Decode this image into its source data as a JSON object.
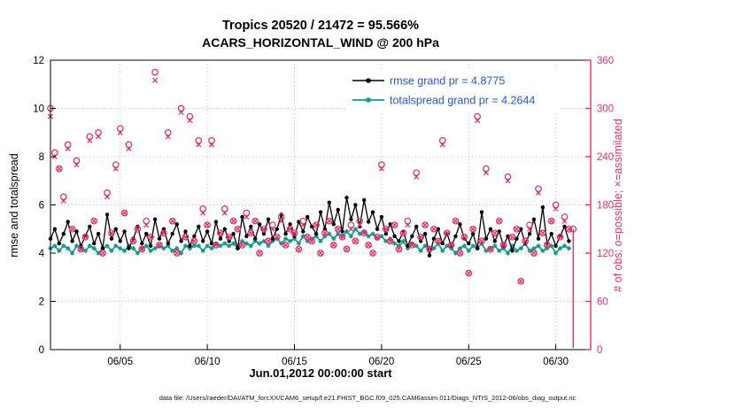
{
  "figure": {
    "footer": "data file: /Users/raeder/DAI/ATM_forcXX/CAM6_setup/f.e21.FHIST_BGC.f09_025.CAM6assim.011/Diags_NTrS_2012-06/obs_diag_output.nc"
  },
  "chart_data": {
    "type": "line+scatter",
    "title": "Tropics 20520 / 21472 = 95.566%",
    "subtitle": "ACARS_HORIZONTAL_WIND @ 200 hPa",
    "xlabel": "Jun.01,2012 00:00:00 start",
    "ylabel_left": "rmse and totalspread",
    "ylabel_right": "# of obs: o=possible; ×=assimilated",
    "left_ylim": [
      0,
      12
    ],
    "right_ylim": [
      0,
      360
    ],
    "x_domain_days": 31,
    "points_per_day": 4,
    "grid": true,
    "legend_position": "top-center-right",
    "x_ticks": {
      "days": [
        4,
        9,
        14,
        19,
        24,
        29
      ],
      "labels": [
        "06/05",
        "06/10",
        "06/15",
        "06/20",
        "06/25",
        "06/30"
      ]
    },
    "left_ticks": [
      0,
      2,
      4,
      6,
      8,
      10,
      12
    ],
    "right_ticks": [
      0,
      60,
      120,
      180,
      240,
      300,
      360
    ],
    "colors": {
      "pink": "#e0306e",
      "teal": "#12998a",
      "black": "#000000",
      "legend_text": "#2457d8",
      "grid": "#bdbdbd"
    },
    "series": {
      "rmse": {
        "name": "rmse grand pr = 4.8775",
        "axis": "left",
        "marker": "dot",
        "line": true,
        "values": [
          4.6,
          5.0,
          4.4,
          4.8,
          5.3,
          4.5,
          4.9,
          4.3,
          4.7,
          5.1,
          4.4,
          4.8,
          4.2,
          5.6,
          4.6,
          5.0,
          4.5,
          4.9,
          4.2,
          4.6,
          5.1,
          4.4,
          4.8,
          4.3,
          5.4,
          4.6,
          5.0,
          4.4,
          4.8,
          5.2,
          4.5,
          4.9,
          4.3,
          4.7,
          5.1,
          4.5,
          4.9,
          4.4,
          5.3,
          4.6,
          5.0,
          4.5,
          4.8,
          4.2,
          5.5,
          4.7,
          5.1,
          4.6,
          5.2,
          4.8,
          5.4,
          4.6,
          5.0,
          5.6,
          4.8,
          5.2,
          4.7,
          5.3,
          4.9,
          5.5,
          5.1,
          4.8,
          5.7,
          5.0,
          6.1,
          5.2,
          5.8,
          4.9,
          6.3,
          5.4,
          6.0,
          5.1,
          6.2,
          5.3,
          5.7,
          5.0,
          5.5,
          4.8,
          5.2,
          4.7,
          4.5,
          4.9,
          4.3,
          4.7,
          5.1,
          4.5,
          4.8,
          3.9,
          4.6,
          5.0,
          4.4,
          4.8,
          4.3,
          4.7,
          5.2,
          4.6,
          4.4,
          4.8,
          4.2,
          5.7,
          4.6,
          5.0,
          4.5,
          4.9,
          4.3,
          4.7,
          4.1,
          4.6,
          5.0,
          4.4,
          4.8,
          5.4,
          4.6,
          5.9,
          4.4,
          4.8,
          4.3,
          4.7,
          5.1,
          4.5
        ]
      },
      "totalspread": {
        "name": "totalspread grand pr = 4.2644",
        "axis": "left",
        "marker": "asterisk",
        "line": true,
        "values": [
          4.2,
          4.3,
          4.1,
          4.3,
          4.2,
          4.0,
          4.3,
          4.2,
          4.1,
          4.3,
          4.2,
          4.0,
          4.2,
          4.3,
          4.1,
          4.3,
          4.2,
          4.1,
          4.3,
          4.2,
          4.0,
          4.2,
          4.3,
          4.1,
          4.2,
          4.3,
          4.2,
          4.3,
          4.1,
          4.2,
          4.0,
          4.3,
          4.2,
          4.3,
          4.3,
          4.1,
          4.3,
          4.2,
          4.4,
          4.3,
          4.4,
          4.3,
          4.4,
          4.2,
          4.5,
          4.4,
          4.3,
          4.5,
          4.4,
          4.5,
          4.3,
          4.5,
          4.6,
          4.4,
          4.6,
          4.5,
          4.6,
          4.4,
          4.7,
          4.5,
          4.6,
          4.7,
          4.5,
          4.7,
          4.8,
          4.6,
          4.8,
          4.7,
          4.9,
          4.7,
          5.0,
          4.8,
          4.9,
          4.7,
          4.8,
          4.6,
          4.7,
          4.5,
          4.6,
          4.4,
          4.3,
          4.5,
          4.2,
          4.4,
          4.3,
          4.1,
          4.3,
          4.2,
          4.2,
          4.4,
          4.1,
          4.3,
          4.2,
          4.0,
          4.2,
          4.3,
          4.1,
          4.3,
          4.2,
          4.4,
          4.1,
          4.2,
          4.3,
          4.1,
          4.2,
          4.0,
          4.3,
          4.1,
          4.2,
          4.4,
          4.1,
          4.2,
          4.3,
          4.1,
          4.2,
          4.3,
          4.0,
          4.2,
          4.3,
          4.2
        ]
      },
      "possible": {
        "name": "possible",
        "axis": "right",
        "marker": "circle",
        "line": false,
        "values": [
          300,
          245,
          225,
          190,
          255,
          150,
          235,
          125,
          140,
          265,
          160,
          270,
          120,
          195,
          145,
          230,
          275,
          170,
          255,
          135,
          150,
          125,
          160,
          140,
          345,
          130,
          145,
          270,
          160,
          120,
          300,
          140,
          290,
          135,
          260,
          175,
          155,
          260,
          130,
          145,
          175,
          140,
          160,
          150,
          130,
          170,
          145,
          160,
          120,
          150,
          135,
          155,
          140,
          165,
          130,
          150,
          145,
          125,
          160,
          140,
          135,
          155,
          120,
          145,
          160,
          130,
          150,
          140,
          125,
          155,
          135,
          160,
          145,
          130,
          120,
          140,
          230,
          150,
          135,
          155,
          125,
          145,
          160,
          130,
          220,
          140,
          155,
          125,
          150,
          135,
          260,
          145,
          130,
          160,
          120,
          140,
          95,
          150,
          290,
          135,
          225,
          125,
          145,
          160,
          130,
          215,
          140,
          150,
          85,
          135,
          155,
          120,
          200,
          145,
          130,
          160,
          180,
          140,
          165,
          150
        ]
      },
      "assimilated": {
        "name": "assimilated",
        "axis": "right",
        "marker": "x",
        "line": false,
        "values": [
          290,
          240,
          225,
          185,
          250,
          150,
          230,
          125,
          140,
          260,
          160,
          265,
          120,
          190,
          145,
          225,
          270,
          170,
          250,
          135,
          150,
          125,
          155,
          140,
          335,
          130,
          145,
          265,
          160,
          120,
          295,
          140,
          285,
          135,
          255,
          170,
          155,
          255,
          130,
          145,
          170,
          140,
          160,
          150,
          130,
          165,
          145,
          160,
          120,
          150,
          135,
          150,
          140,
          160,
          130,
          150,
          145,
          125,
          155,
          140,
          135,
          155,
          120,
          145,
          160,
          130,
          150,
          140,
          125,
          150,
          135,
          155,
          145,
          130,
          120,
          140,
          225,
          150,
          135,
          155,
          125,
          145,
          155,
          130,
          215,
          140,
          155,
          125,
          150,
          135,
          255,
          145,
          130,
          160,
          120,
          140,
          95,
          150,
          285,
          135,
          220,
          125,
          145,
          160,
          130,
          210,
          140,
          150,
          85,
          135,
          150,
          120,
          195,
          145,
          130,
          160,
          175,
          140,
          160,
          150
        ]
      }
    },
    "end_drop": {
      "day": 30.0,
      "from": 150,
      "to": 2
    }
  }
}
